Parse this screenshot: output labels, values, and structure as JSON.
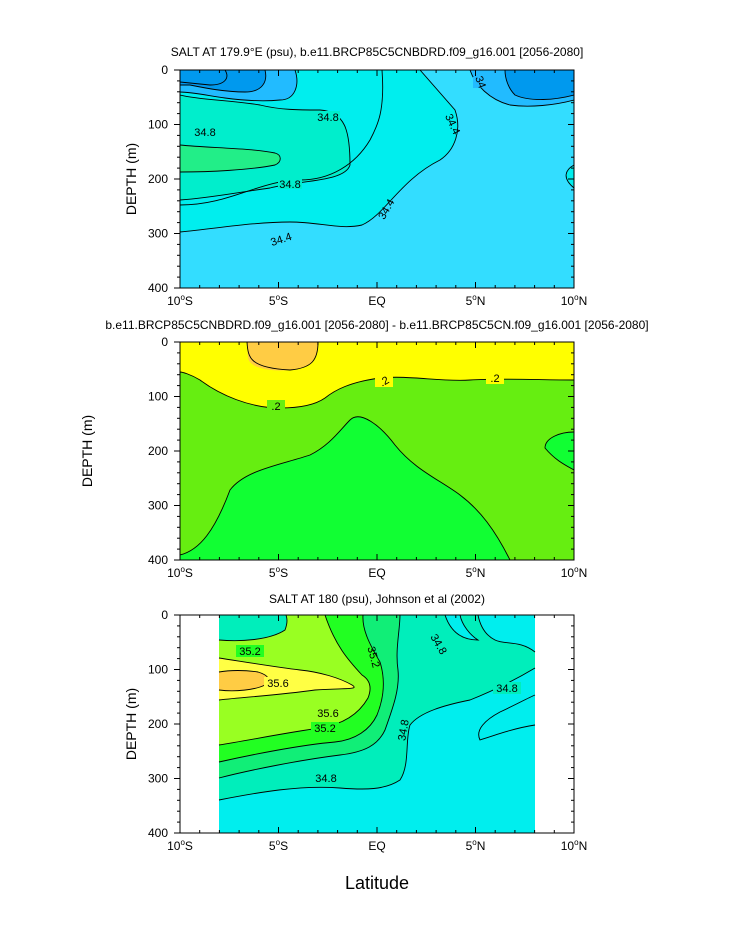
{
  "chart_data": [
    {
      "type": "contour",
      "title": "SALT AT 179.9°E (psu), b.e11.BRCP85C5CNBDRD.f09_g16.001 [2056-2080]",
      "xlabel": "",
      "ylabel": "DEPTH (m)",
      "xlim": [
        -10,
        10
      ],
      "ylim": [
        400,
        0
      ],
      "x_ticks": [
        "10°S",
        "5°S",
        "EQ",
        "5°N",
        "10°N"
      ],
      "y_ticks": [
        "0",
        "100",
        "200",
        "300",
        "400"
      ],
      "contour_labels": [
        "34",
        "34.8",
        "34.8",
        "34.8",
        "34.4",
        "34.4",
        "34.4"
      ],
      "palette": [
        "#0099ee",
        "#22bbff",
        "#33ddff",
        "#00eeee",
        "#00eecc",
        "#22ee88"
      ]
    },
    {
      "type": "contour",
      "title": "b.e11.BRCP85C5CNBDRD.f09_g16.001 [2056-2080] - b.e11.BRCP85C5CN.f09_g16.001 [2056-2080]",
      "xlabel": "",
      "ylabel": "DEPTH (m)",
      "xlim": [
        -10,
        10
      ],
      "ylim": [
        400,
        0
      ],
      "x_ticks": [
        "10°S",
        "5°S",
        "EQ",
        "5°N",
        "10°N"
      ],
      "y_ticks": [
        "0",
        "100",
        "200",
        "300",
        "400"
      ],
      "contour_labels": [
        ".2",
        ".2",
        ".2"
      ],
      "palette": [
        "#ffff00",
        "#ffcc44",
        "#66ee11",
        "#11ff33"
      ]
    },
    {
      "type": "contour",
      "title": "SALT AT 180 (psu), Johnson et al (2002)",
      "xlabel": "Latitude",
      "ylabel": "DEPTH (m)",
      "xlim": [
        -10,
        10
      ],
      "ylim": [
        400,
        0
      ],
      "data_xrange": [
        -8,
        8
      ],
      "x_ticks": [
        "10°S",
        "5°S",
        "EQ",
        "5°N",
        "10°N"
      ],
      "y_ticks": [
        "0",
        "100",
        "200",
        "300",
        "400"
      ],
      "contour_labels": [
        "35.2",
        "35.6",
        "35.6",
        "35.2",
        "35.2",
        "34.8",
        "34.8",
        "34.8",
        "34.8"
      ],
      "palette": [
        "#00eeee",
        "#00eebb",
        "#11ee77",
        "#22ff22",
        "#99ff22",
        "#ffff44",
        "#ffcc44"
      ]
    }
  ]
}
